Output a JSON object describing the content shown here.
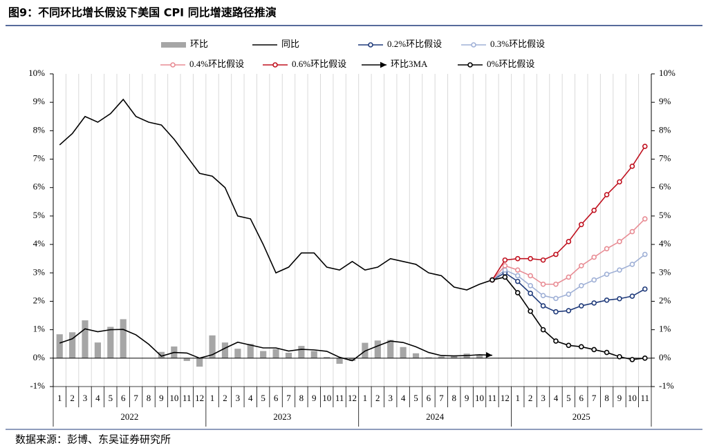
{
  "chart_data": {
    "type": "combo",
    "title": "图9：不同环比增长假设下美国 CPI 同比增速路径推演",
    "source": "数据来源：彭博、东吴证券研究所",
    "categories": [
      "1",
      "2",
      "3",
      "4",
      "5",
      "6",
      "7",
      "8",
      "9",
      "10",
      "11",
      "12",
      "1",
      "2",
      "3",
      "4",
      "5",
      "6",
      "7",
      "8",
      "9",
      "10",
      "11",
      "12",
      "1",
      "2",
      "3",
      "4",
      "5",
      "6",
      "7",
      "8",
      "9",
      "10",
      "11",
      "12",
      "1",
      "2",
      "3",
      "4",
      "5",
      "6",
      "7",
      "8",
      "9",
      "10",
      "11"
    ],
    "x_groups": [
      "2022",
      "2023",
      "2024",
      "2025"
    ],
    "ylim": [
      -1,
      10
    ],
    "yticks": [
      {
        "value": -1,
        "label": "-1%"
      },
      {
        "value": 0,
        "label": "0%"
      },
      {
        "value": 1,
        "label": "1%"
      },
      {
        "value": 2,
        "label": "2%"
      },
      {
        "value": 3,
        "label": "3%"
      },
      {
        "value": 4,
        "label": "4%"
      },
      {
        "value": 5,
        "label": "5%"
      },
      {
        "value": 6,
        "label": "6%"
      },
      {
        "value": 7,
        "label": "7%"
      },
      {
        "value": 8,
        "label": "8%"
      },
      {
        "value": 9,
        "label": "9%"
      },
      {
        "value": 10,
        "label": "10%"
      }
    ],
    "y2lim": [
      -1,
      10
    ],
    "y2ticks": [
      {
        "value": -1,
        "label": "-1%"
      },
      {
        "value": 0,
        "label": "0%"
      },
      {
        "value": 1,
        "label": "1%"
      },
      {
        "value": 2,
        "label": "2%"
      },
      {
        "value": 3,
        "label": "3%"
      },
      {
        "value": 4,
        "label": "4%"
      },
      {
        "value": 5,
        "label": "5%"
      },
      {
        "value": 6,
        "label": "6%"
      },
      {
        "value": 7,
        "label": "7%"
      },
      {
        "value": 8,
        "label": "8%"
      },
      {
        "value": 9,
        "label": "9%"
      },
      {
        "value": 10,
        "label": "10%"
      }
    ],
    "grid": true,
    "series": [
      {
        "name": "环比",
        "type": "bar",
        "color": "#a6a6a6",
        "values": [
          0.84,
          0.91,
          1.33,
          0.55,
          1.1,
          1.37,
          0.0,
          0.0,
          0.22,
          0.41,
          -0.1,
          -0.3,
          0.8,
          0.55,
          0.33,
          0.5,
          0.25,
          0.32,
          0.19,
          0.43,
          0.25,
          0.04,
          -0.2,
          -0.1,
          0.54,
          0.62,
          0.64,
          0.39,
          0.17,
          0.03,
          0.06,
          0.08,
          0.16,
          0.13,
          null,
          null,
          null,
          null,
          null,
          null,
          null,
          null,
          null,
          null,
          null,
          null,
          null
        ]
      },
      {
        "name": "同比",
        "type": "line",
        "color": "#000000",
        "values": [
          7.5,
          7.9,
          8.5,
          8.3,
          8.6,
          9.1,
          8.5,
          8.3,
          8.2,
          7.7,
          7.1,
          6.5,
          6.4,
          6.0,
          5.0,
          4.9,
          4.0,
          3.0,
          3.2,
          3.7,
          3.7,
          3.2,
          3.1,
          3.4,
          3.1,
          3.2,
          3.5,
          3.4,
          3.3,
          3.0,
          2.9,
          2.5,
          2.4,
          2.6,
          2.75,
          null,
          null,
          null,
          null,
          null,
          null,
          null,
          null,
          null,
          null,
          null,
          null
        ]
      },
      {
        "name": "0.2%环比假设",
        "type": "line",
        "color": "#1f3a7a",
        "marker": "circle",
        "values": [
          null,
          null,
          null,
          null,
          null,
          null,
          null,
          null,
          null,
          null,
          null,
          null,
          null,
          null,
          null,
          null,
          null,
          null,
          null,
          null,
          null,
          null,
          null,
          null,
          null,
          null,
          null,
          null,
          null,
          null,
          null,
          null,
          null,
          null,
          2.75,
          3.0,
          2.7,
          2.28,
          1.84,
          1.63,
          1.67,
          1.84,
          1.94,
          2.04,
          2.09,
          2.18,
          2.43
        ]
      },
      {
        "name": "0.3%环比假设",
        "type": "line",
        "color": "#9fb0d6",
        "marker": "circle",
        "values": [
          null,
          null,
          null,
          null,
          null,
          null,
          null,
          null,
          null,
          null,
          null,
          null,
          null,
          null,
          null,
          null,
          null,
          null,
          null,
          null,
          null,
          null,
          null,
          null,
          null,
          null,
          null,
          null,
          null,
          null,
          null,
          null,
          null,
          null,
          2.75,
          3.1,
          2.9,
          2.55,
          2.2,
          2.1,
          2.25,
          2.55,
          2.75,
          2.95,
          3.1,
          3.3,
          3.65
        ]
      },
      {
        "name": "0.4%环比假设",
        "type": "line",
        "color": "#e88c94",
        "marker": "circle",
        "values": [
          null,
          null,
          null,
          null,
          null,
          null,
          null,
          null,
          null,
          null,
          null,
          null,
          null,
          null,
          null,
          null,
          null,
          null,
          null,
          null,
          null,
          null,
          null,
          null,
          null,
          null,
          null,
          null,
          null,
          null,
          null,
          null,
          null,
          null,
          2.75,
          3.25,
          3.1,
          2.9,
          2.6,
          2.6,
          2.85,
          3.25,
          3.55,
          3.85,
          4.1,
          4.45,
          4.9
        ]
      },
      {
        "name": "0.6%环比假设",
        "type": "line",
        "color": "#c0111f",
        "marker": "circle",
        "values": [
          null,
          null,
          null,
          null,
          null,
          null,
          null,
          null,
          null,
          null,
          null,
          null,
          null,
          null,
          null,
          null,
          null,
          null,
          null,
          null,
          null,
          null,
          null,
          null,
          null,
          null,
          null,
          null,
          null,
          null,
          null,
          null,
          null,
          null,
          2.75,
          3.45,
          3.5,
          3.5,
          3.45,
          3.65,
          4.1,
          4.7,
          5.2,
          5.75,
          6.2,
          6.75,
          7.45
        ]
      },
      {
        "name": "环比3MA",
        "type": "line",
        "color": "#000000",
        "marker": "arrow",
        "values": [
          0.53,
          0.68,
          1.03,
          0.93,
          1.0,
          1.01,
          0.82,
          0.49,
          0.07,
          0.2,
          0.18,
          0.0,
          0.12,
          0.35,
          0.56,
          0.46,
          0.36,
          0.36,
          0.25,
          0.31,
          0.29,
          0.24,
          0.03,
          -0.09,
          0.25,
          0.43,
          0.6,
          0.55,
          0.4,
          0.2,
          0.09,
          0.08,
          0.09,
          0.12,
          0.1,
          null,
          null,
          null,
          null,
          null,
          null,
          null,
          null,
          null,
          null,
          null,
          null
        ]
      },
      {
        "name": "0%环比假设",
        "type": "line",
        "color": "#000000",
        "marker": "circle",
        "values": [
          null,
          null,
          null,
          null,
          null,
          null,
          null,
          null,
          null,
          null,
          null,
          null,
          null,
          null,
          null,
          null,
          null,
          null,
          null,
          null,
          null,
          null,
          null,
          null,
          null,
          null,
          null,
          null,
          null,
          null,
          null,
          null,
          null,
          null,
          2.75,
          2.85,
          2.3,
          1.65,
          1.0,
          0.6,
          0.45,
          0.4,
          0.3,
          0.2,
          0.05,
          -0.05,
          0.0
        ]
      }
    ]
  }
}
